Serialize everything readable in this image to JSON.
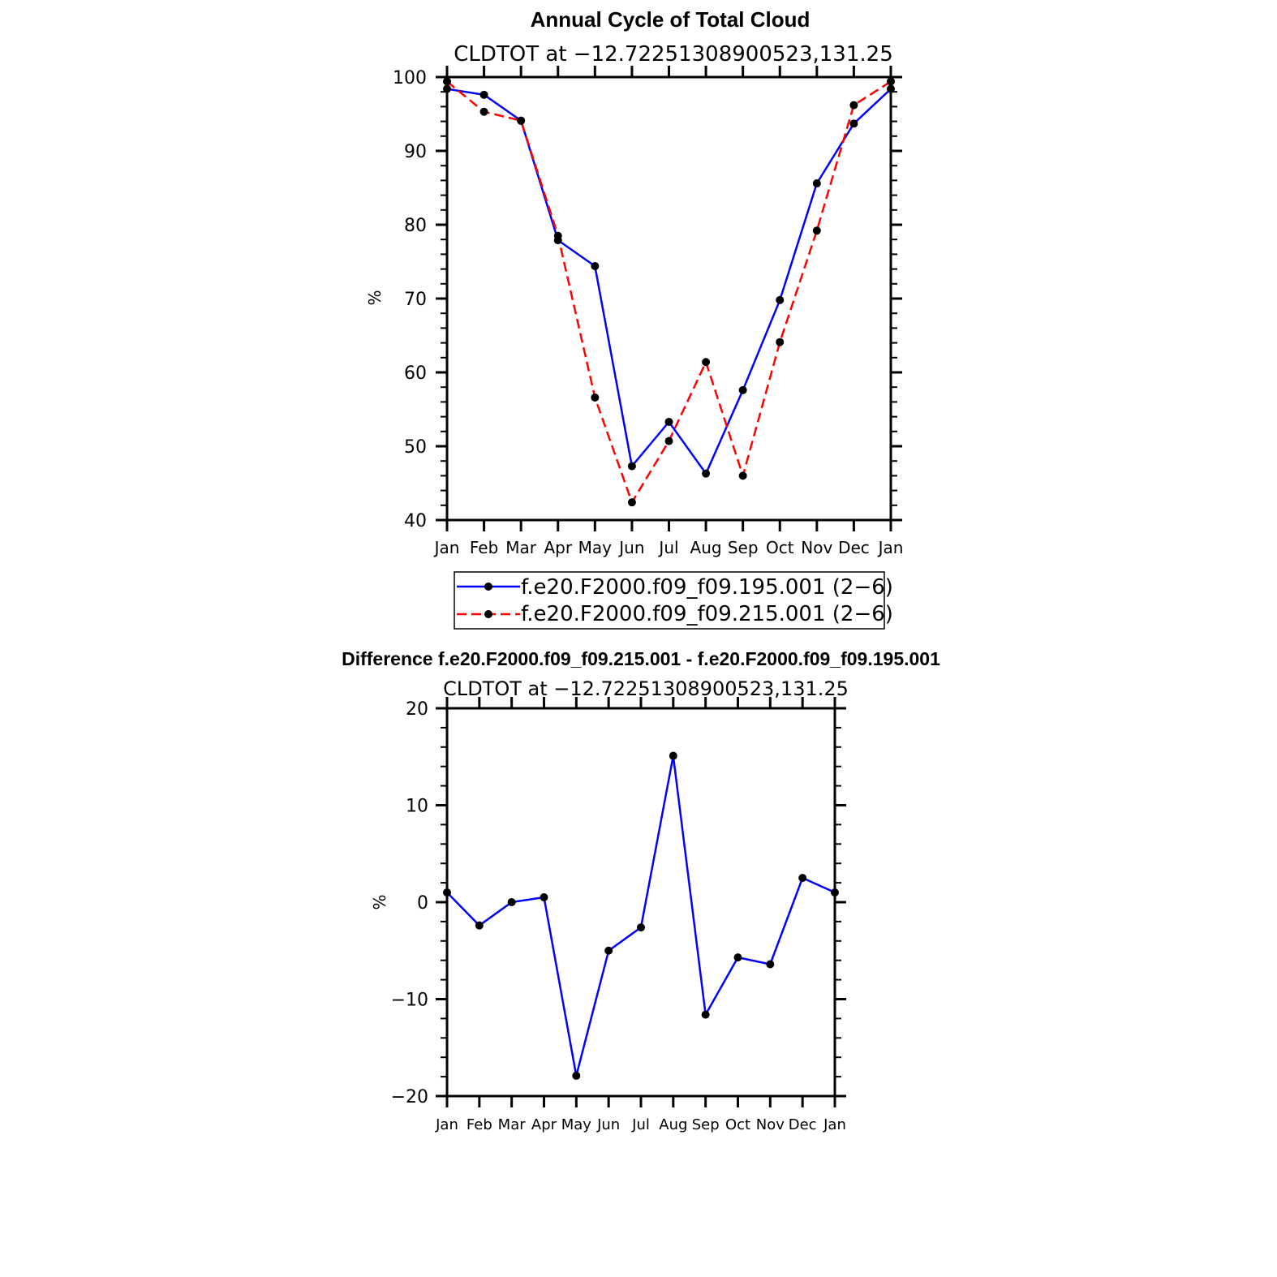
{
  "colors": {
    "series_a": "#0000ff",
    "series_b": "#ff0000",
    "marker": "#000000"
  },
  "chart_data": [
    {
      "type": "line",
      "title": "Annual Cycle of Total Cloud",
      "subtitle": "CLDTOT at −12.72251308900523,131.25",
      "xlabel": "",
      "ylabel": "%",
      "categories": [
        "Jan",
        "Feb",
        "Mar",
        "Apr",
        "May",
        "Jun",
        "Jul",
        "Aug",
        "Sep",
        "Oct",
        "Nov",
        "Dec",
        "Jan"
      ],
      "ylim": [
        40,
        100
      ],
      "yticks": [
        40,
        50,
        60,
        70,
        80,
        90,
        100
      ],
      "grid": false,
      "legend_position": "bottom",
      "series": [
        {
          "name": "f.e20.F2000.f09_f09.195.001 (2−6)",
          "style": "solid",
          "color": "#0000ff",
          "values": [
            98.4,
            97.6,
            94.1,
            77.9,
            74.4,
            47.3,
            53.3,
            46.3,
            57.6,
            69.8,
            85.6,
            93.7,
            98.4
          ]
        },
        {
          "name": "f.e20.F2000.f09_f09.215.001 (2−6)",
          "style": "dashed",
          "color": "#ff0000",
          "values": [
            99.4,
            95.3,
            94.1,
            78.5,
            56.6,
            42.4,
            50.7,
            61.4,
            46.0,
            64.1,
            79.2,
            96.2,
            99.4
          ]
        }
      ]
    },
    {
      "type": "line",
      "title": "Difference f.e20.F2000.f09_f09.215.001 - f.e20.F2000.f09_f09.195.001",
      "subtitle": "CLDTOT at −12.72251308900523,131.25",
      "xlabel": "",
      "ylabel": "%",
      "categories": [
        "Jan",
        "Feb",
        "Mar",
        "Apr",
        "May",
        "Jun",
        "Jul",
        "Aug",
        "Sep",
        "Oct",
        "Nov",
        "Dec",
        "Jan"
      ],
      "ylim": [
        -20,
        20
      ],
      "yticks": [
        -20,
        -10,
        0,
        10,
        20
      ],
      "ytick_labels": [
        "−20",
        "−10",
        "0",
        "10",
        "20"
      ],
      "grid": false,
      "series": [
        {
          "style": "solid",
          "color": "#0000ff",
          "values": [
            1.0,
            -2.4,
            0.0,
            0.5,
            -17.9,
            -5.0,
            -2.6,
            15.1,
            -11.6,
            -5.7,
            -6.4,
            2.5,
            1.0
          ]
        }
      ]
    }
  ]
}
